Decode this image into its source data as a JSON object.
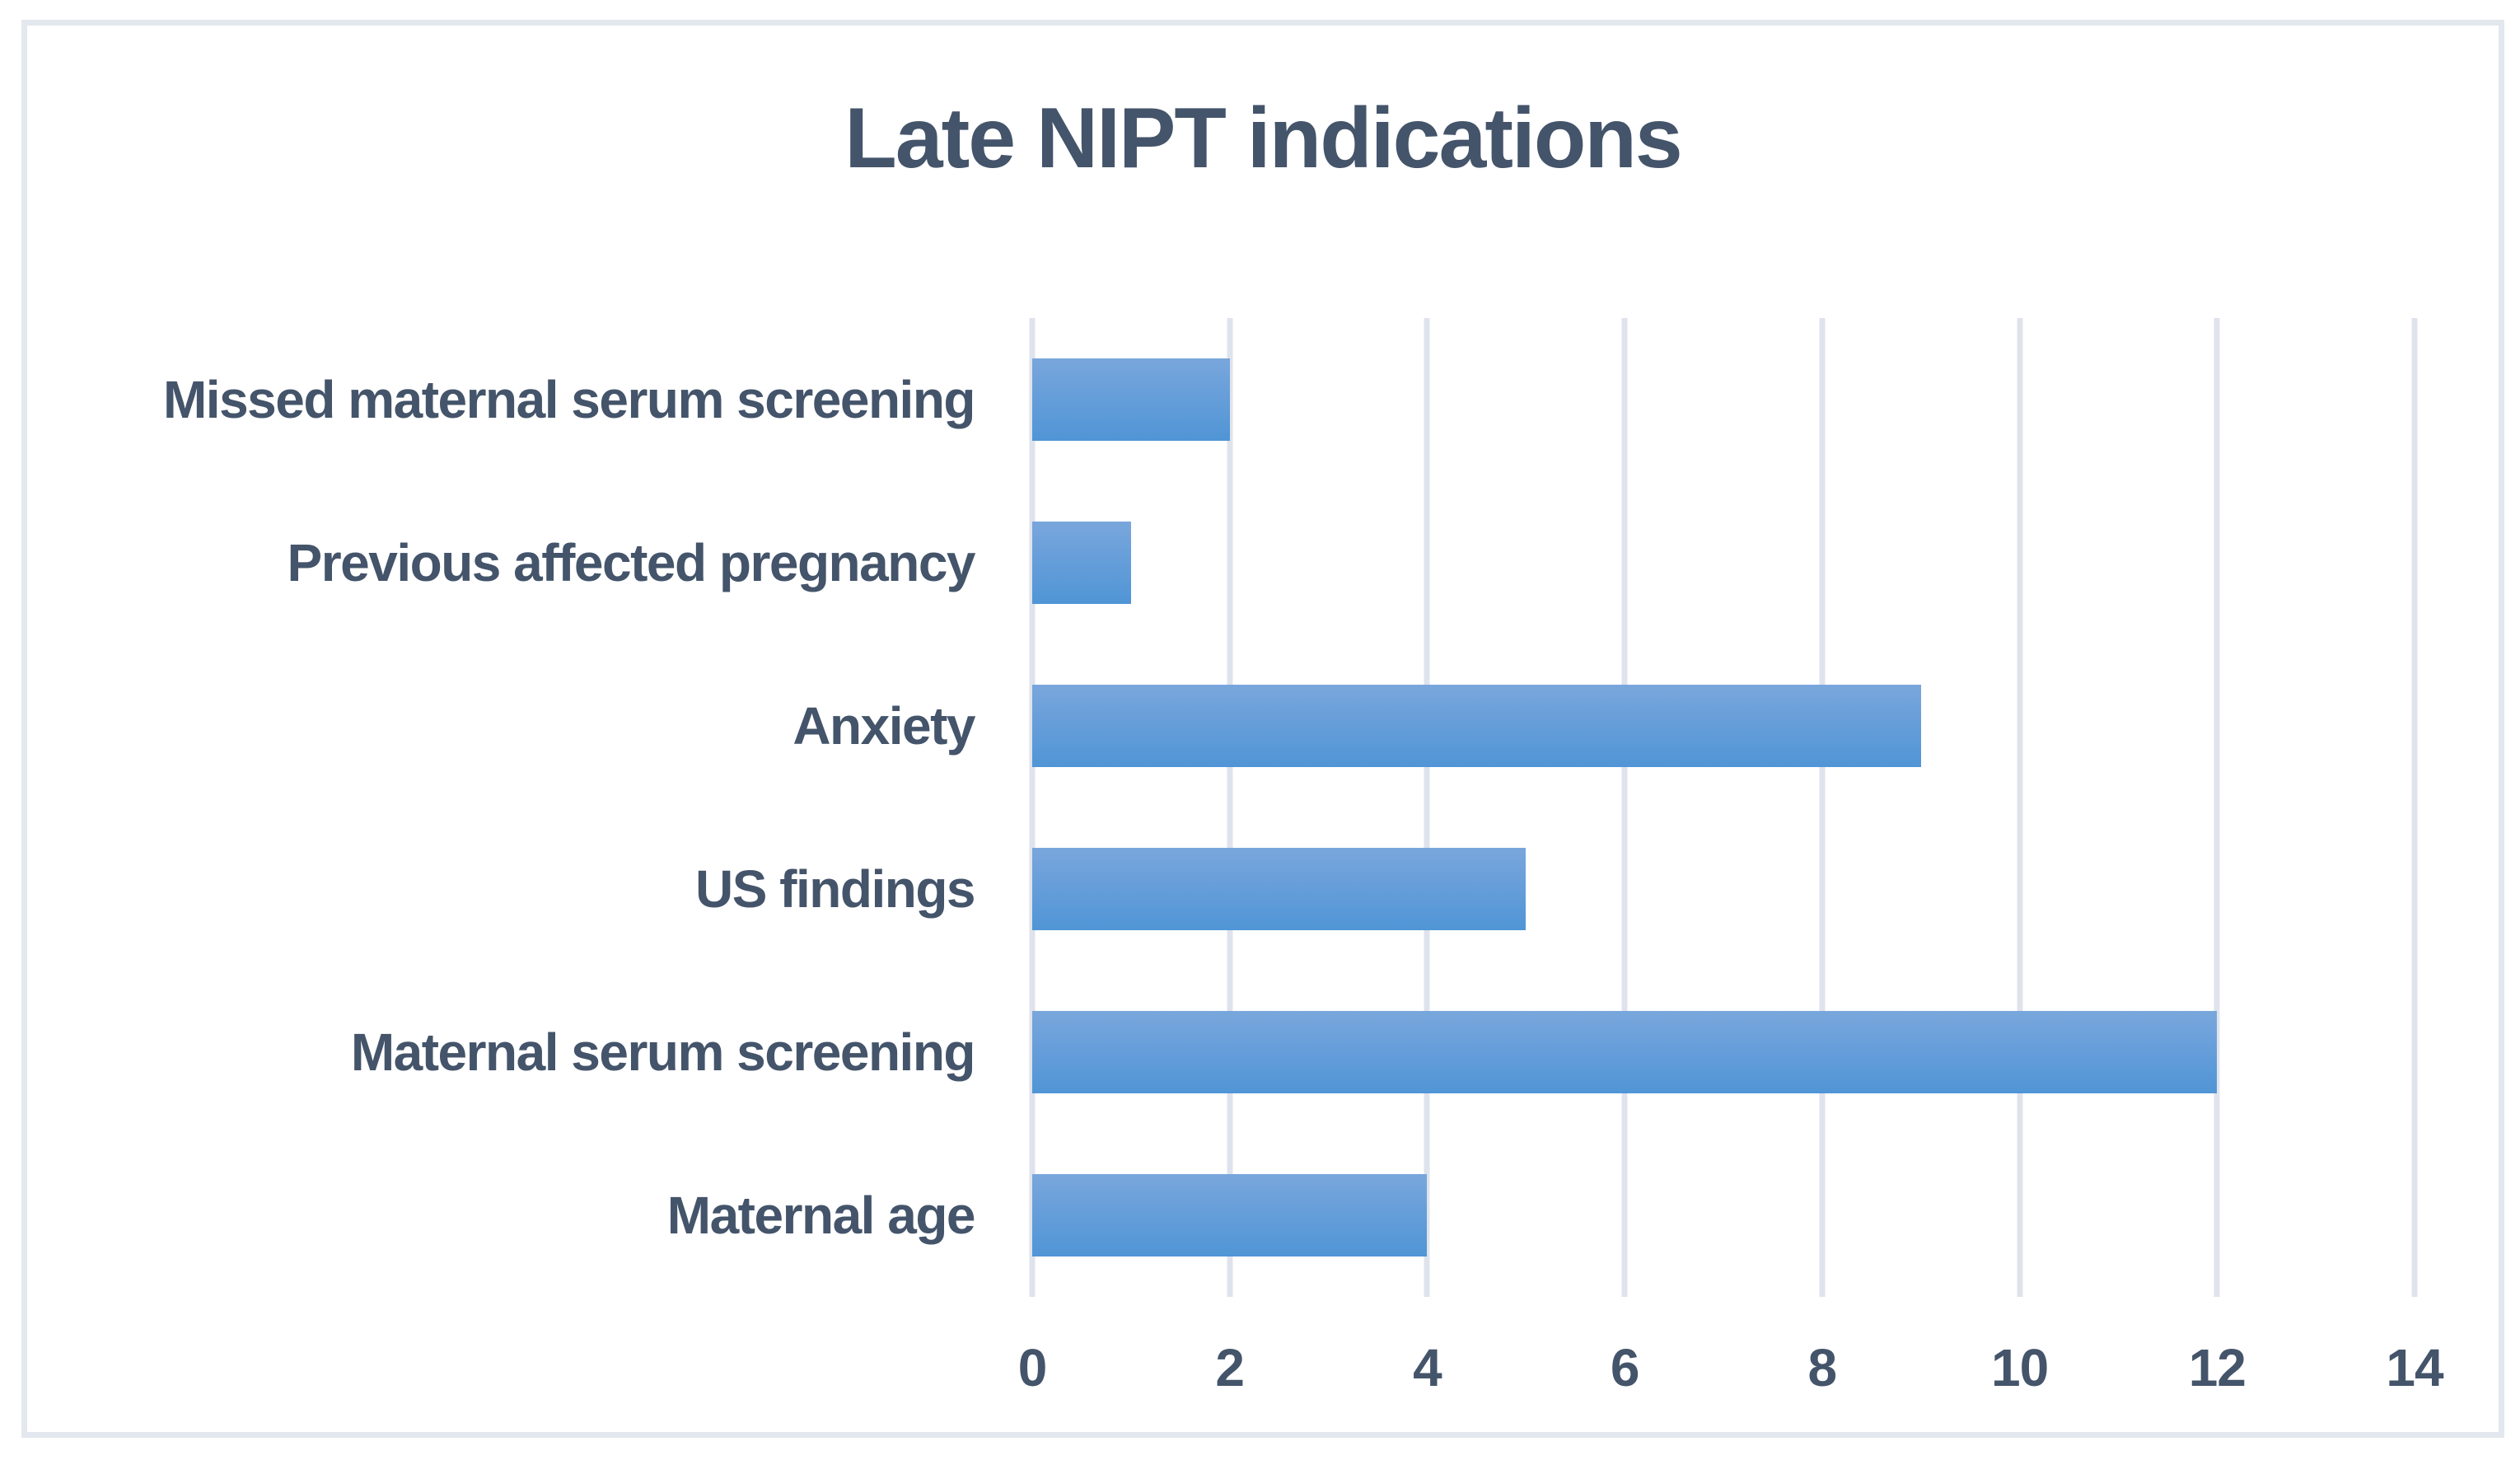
{
  "chart_data": {
    "type": "bar",
    "orientation": "horizontal",
    "title": "Late NIPT indications",
    "categories": [
      "Missed maternal serum screening",
      "Previous affected pregnancy",
      "Anxiety",
      "US findings",
      "Maternal serum screening",
      "Maternal age"
    ],
    "values": [
      2,
      1,
      9,
      5,
      12,
      4
    ],
    "x_ticks": [
      "0",
      "2",
      "4",
      "6",
      "8",
      "10",
      "12",
      "14"
    ],
    "xlim": [
      0,
      14
    ],
    "xlabel": "",
    "ylabel": "",
    "grid": "vertical-gridlines-on",
    "legend": "none",
    "colors": {
      "bar_gradient_top": "#79a7dc",
      "bar_gradient_bottom": "#5095d6",
      "text": "#44546a",
      "gridline": "#dfe3ec",
      "frame_border": "#e3e7ee",
      "background": "#ffffff"
    }
  }
}
